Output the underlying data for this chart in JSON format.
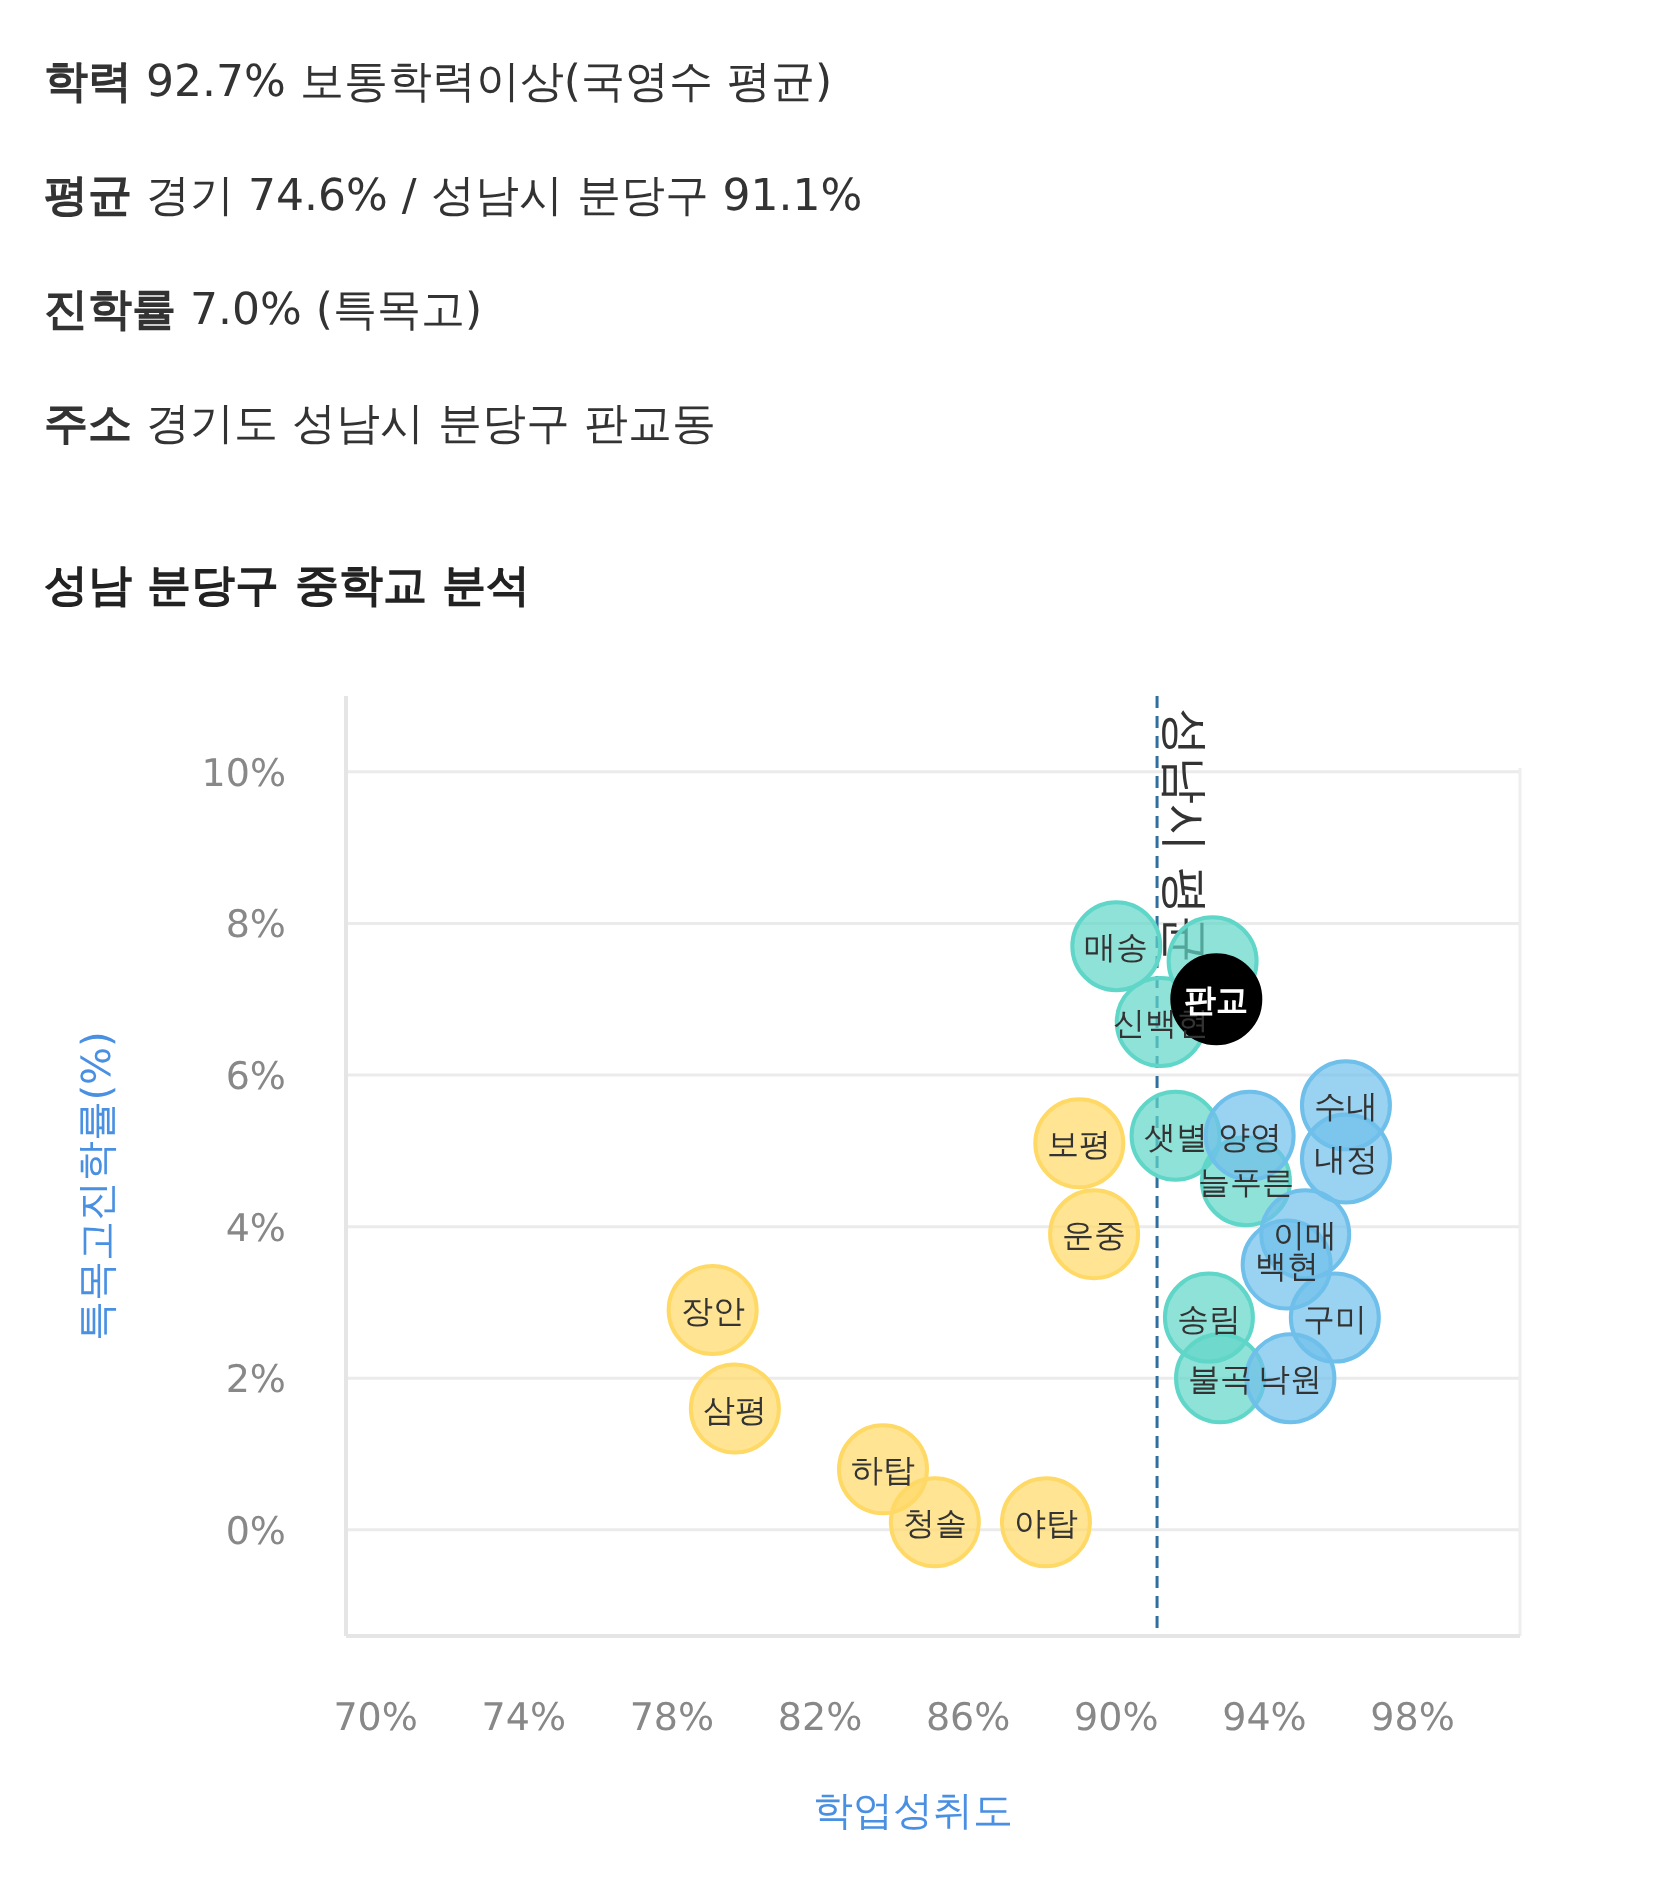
{
  "chart_data": {
    "type": "scatter",
    "title": "성남 분당구 중학교 분석",
    "xlabel": "학업성취도",
    "ylabel": "특목고진학률(%)",
    "annotations": [
      "**학력** 92.7% 보통학력이상(국영수 평균)",
      "**평균** 경기 74.6% / 성남시 분당구 91.1%",
      "**진학률** 7.0% (특목고)",
      "**주소** 경기도 성남시 분당구 판교동",
      {
        "text": "장안",
        "x": 79.1,
        "y": 2.9
      },
      {
        "text": "삼평",
        "x": 79.7,
        "y": 1.6
      },
      {
        "text": "하탑",
        "x": 83.7,
        "y": 0.8
      },
      {
        "text": "청솔",
        "x": 85.1,
        "y": 0.1
      },
      {
        "text": "야탑",
        "x": 88.1,
        "y": 0.1
      },
      {
        "text": "보평",
        "x": 89.0,
        "y": 5.1
      },
      {
        "text": "운중",
        "x": 89.4,
        "y": 3.9
      },
      {
        "text": "매송",
        "x": 90.0,
        "y": 7.7
      },
      {
        "text": "신백현",
        "x": 91.2,
        "y": 6.7
      },
      {
        "text": "샛별",
        "x": 91.6,
        "y": 5.2
      },
      {
        "text": "늘푸른",
        "x": 93.5,
        "y": 4.6
      },
      {
        "text": "송림",
        "x": 92.5,
        "y": 2.8
      },
      {
        "text": "불곡",
        "x": 92.8,
        "y": 2.0
      },
      {
        "text": "수내",
        "x": 96.2,
        "y": 5.6
      },
      {
        "text": "내정",
        "x": 96.2,
        "y": 4.9
      },
      {
        "text": "양영",
        "x": 93.6,
        "y": 5.2
      },
      {
        "text": "이매",
        "x": 95.1,
        "y": 3.9
      },
      {
        "text": "백현",
        "x": 94.6,
        "y": 3.5
      },
      {
        "text": "구미",
        "x": 95.9,
        "y": 2.8
      },
      {
        "text": "낙원",
        "x": 94.7,
        "y": 2.0
      },
      {
        "text": "판교",
        "x": 92.7,
        "y": 7.0
      }
    ],
    "series": [
      {
        "color": "#ffd966",
        "x": [
          79.1,
          79.7,
          83.7,
          85.1,
          88.1,
          89.0,
          89.4
        ],
        "values": [
          2.9,
          1.6,
          0.8,
          0.1,
          0.1,
          5.1,
          3.9
        ]
      },
      {
        "color": "#5fd6c8",
        "x": [
          90.0,
          92.6,
          91.2,
          91.6,
          93.5,
          92.5,
          92.8
        ],
        "values": [
          7.7,
          7.5,
          6.7,
          5.2,
          4.6,
          2.8,
          2.0
        ]
      },
      {
        "color": "#6fbfeb",
        "x": [
          96.2,
          96.2,
          93.6,
          95.1,
          94.6,
          95.9,
          94.7
        ],
        "values": [
          5.6,
          4.9,
          5.2,
          3.9,
          3.5,
          2.8,
          2.0
        ]
      },
      {
        "color": "#000000",
        "x": [
          92.7
        ],
        "values": [
          7.0
        ]
      }
    ],
    "marker": "circle",
    "grid": "y",
    "xlim": [
      69.2,
      100.9
    ],
    "ylim": [
      -1.4,
      11
    ],
    "xticks": [
      {
        "value": 70,
        "label": "70%"
      },
      {
        "value": 74,
        "label": "74%"
      },
      {
        "value": 78,
        "label": "78%"
      },
      {
        "value": 82,
        "label": "82%"
      },
      {
        "value": 86,
        "label": "86%"
      },
      {
        "value": 90,
        "label": "90%"
      },
      {
        "value": 94,
        "label": "94%"
      },
      {
        "value": 98,
        "label": "98%"
      }
    ],
    "yticks": [
      {
        "value": 0,
        "label": "0%"
      },
      {
        "value": 2,
        "label": "2%"
      },
      {
        "value": 4,
        "label": "4%"
      },
      {
        "value": 6,
        "label": "6%"
      },
      {
        "value": 8,
        "label": "8%"
      },
      {
        "value": 10,
        "label": "10%"
      }
    ],
    "ref_lines": [
      {
        "axis": "x",
        "value": 91.1,
        "label": "성남시 평균",
        "color": "#2f6f9f",
        "line_style": "dashed"
      }
    ]
  }
}
